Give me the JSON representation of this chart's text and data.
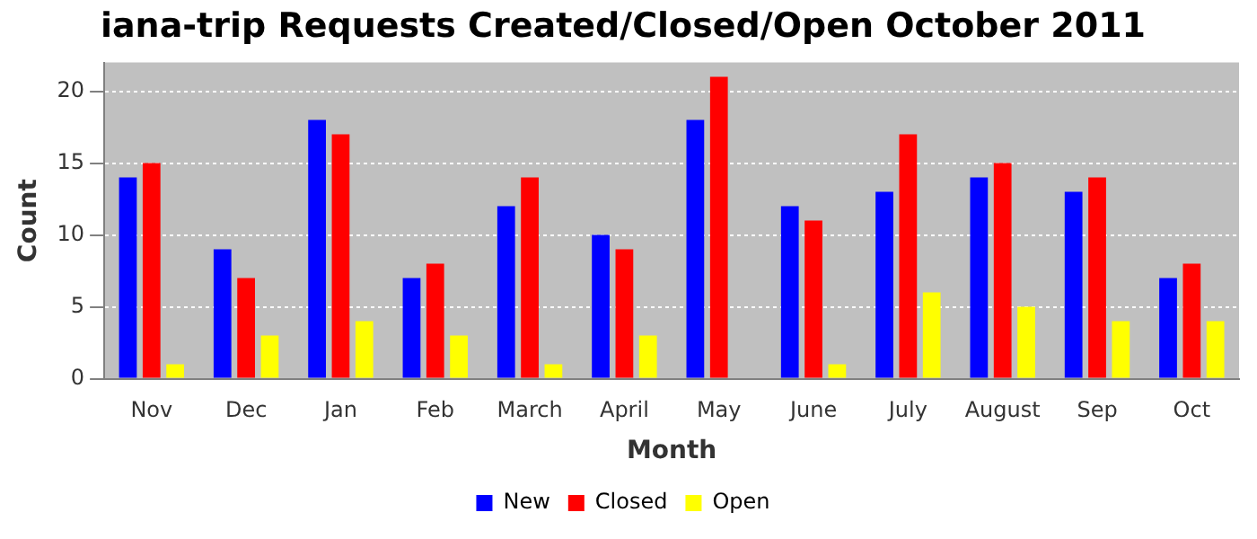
{
  "chart_data": {
    "type": "bar",
    "title": "iana-trip Requests Created/Closed/Open October 2011",
    "xlabel": "Month",
    "ylabel": "Count",
    "categories": [
      "Nov",
      "Dec",
      "Jan",
      "Feb",
      "March",
      "April",
      "May",
      "June",
      "July",
      "August",
      "Sep",
      "Oct"
    ],
    "series": [
      {
        "name": "New",
        "color": "#0000ff",
        "values": [
          14,
          9,
          18,
          7,
          12,
          10,
          18,
          12,
          13,
          14,
          13,
          7
        ]
      },
      {
        "name": "Closed",
        "color": "#ff0000",
        "values": [
          15,
          7,
          17,
          8,
          14,
          9,
          21,
          11,
          17,
          15,
          14,
          8
        ]
      },
      {
        "name": "Open",
        "color": "#ffff00",
        "values": [
          1,
          3,
          4,
          3,
          1,
          3,
          0,
          1,
          6,
          5,
          4,
          4
        ]
      }
    ],
    "ylim": [
      0,
      22
    ],
    "yticks": [
      0,
      5,
      10,
      15,
      20
    ],
    "grid": "y",
    "legend": "bottom"
  }
}
